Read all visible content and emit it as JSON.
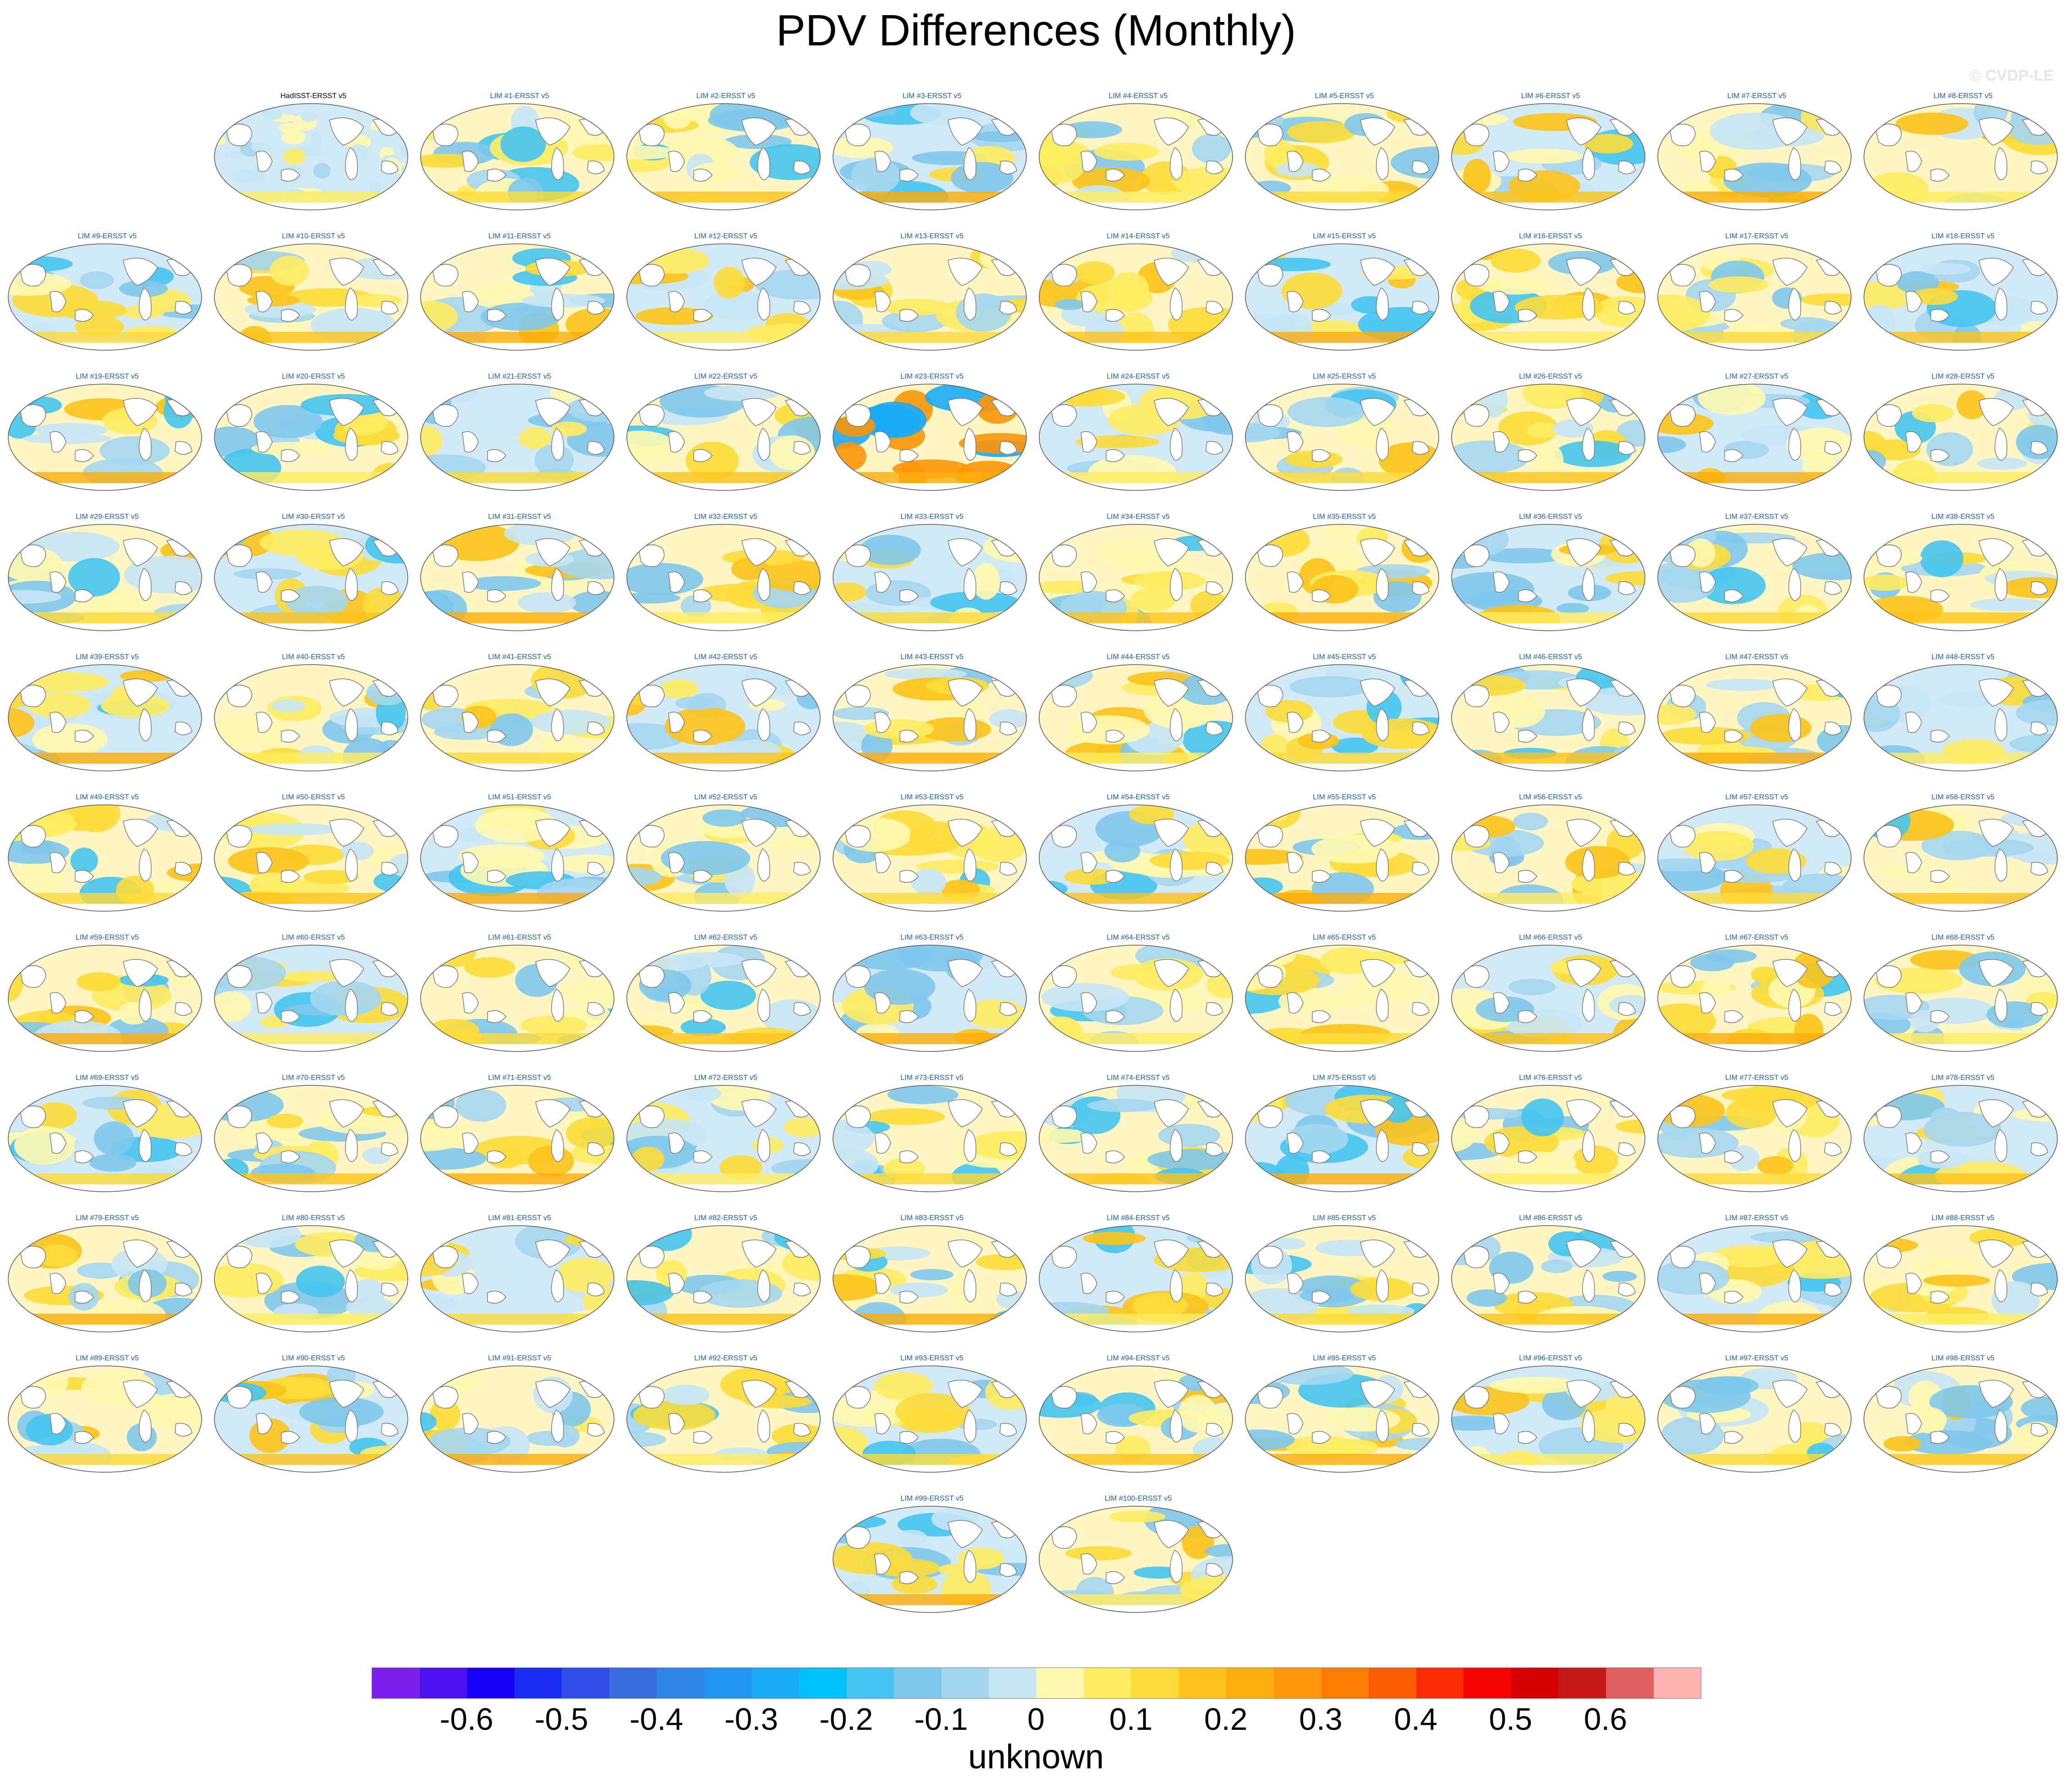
{
  "title": "PDV Differences (Monthly)",
  "watermark": "© CVDP-LE",
  "units_label": "unknown",
  "colorbar": {
    "colors": [
      "#7b20ee",
      "#4d12f0",
      "#1800f5",
      "#1a2ef2",
      "#2f4fe6",
      "#3b6fe0",
      "#2e86e9",
      "#2196f3",
      "#1aaaf5",
      "#00c0fa",
      "#45c4f0",
      "#7fc8ec",
      "#a4d6f0",
      "#c6e6f4",
      "#fff8b0",
      "#ffec62",
      "#fcdb3a",
      "#fdc31a",
      "#fcad0b",
      "#fd9608",
      "#fc7b04",
      "#fc5a03",
      "#fd2a02",
      "#f50400",
      "#d50000",
      "#c71616",
      "#e05f5f",
      "#ffb4b4"
    ],
    "tick_labels": [
      "-0.6",
      "-0.5",
      "-0.4",
      "-0.3",
      "-0.2",
      "-0.1",
      "0",
      "0.1",
      "0.2",
      "0.3",
      "0.4",
      "0.5",
      "0.6"
    ]
  },
  "panels": [
    "HadISST-ERSST v5",
    "LIM #1-ERSST v5",
    "LIM #2-ERSST v5",
    "LIM #3-ERSST v5",
    "LIM #4-ERSST v5",
    "LIM #5-ERSST v5",
    "LIM #6-ERSST v5",
    "LIM #7-ERSST v5",
    "LIM #8-ERSST v5",
    "LIM #9-ERSST v5",
    "LIM #10-ERSST v5",
    "LIM #11-ERSST v5",
    "LIM #12-ERSST v5",
    "LIM #13-ERSST v5",
    "LIM #14-ERSST v5",
    "LIM #15-ERSST v5",
    "LIM #16-ERSST v5",
    "LIM #17-ERSST v5",
    "LIM #18-ERSST v5",
    "LIM #19-ERSST v5",
    "LIM #20-ERSST v5",
    "LIM #21-ERSST v5",
    "LIM #22-ERSST v5",
    "LIM #23-ERSST v5",
    "LIM #24-ERSST v5",
    "LIM #25-ERSST v5",
    "LIM #26-ERSST v5",
    "LIM #27-ERSST v5",
    "LIM #28-ERSST v5",
    "LIM #29-ERSST v5",
    "LIM #30-ERSST v5",
    "LIM #31-ERSST v5",
    "LIM #32-ERSST v5",
    "LIM #33-ERSST v5",
    "LIM #34-ERSST v5",
    "LIM #35-ERSST v5",
    "LIM #36-ERSST v5",
    "LIM #37-ERSST v5",
    "LIM #38-ERSST v5",
    "LIM #39-ERSST v5",
    "LIM #40-ERSST v5",
    "LIM #41-ERSST v5",
    "LIM #42-ERSST v5",
    "LIM #43-ERSST v5",
    "LIM #44-ERSST v5",
    "LIM #45-ERSST v5",
    "LIM #46-ERSST v5",
    "LIM #47-ERSST v5",
    "LIM #48-ERSST v5",
    "LIM #49-ERSST v5",
    "LIM #50-ERSST v5",
    "LIM #51-ERSST v5",
    "LIM #52-ERSST v5",
    "LIM #53-ERSST v5",
    "LIM #54-ERSST v5",
    "LIM #55-ERSST v5",
    "LIM #56-ERSST v5",
    "LIM #57-ERSST v5",
    "LIM #58-ERSST v5",
    "LIM #59-ERSST v5",
    "LIM #60-ERSST v5",
    "LIM #61-ERSST v5",
    "LIM #62-ERSST v5",
    "LIM #63-ERSST v5",
    "LIM #64-ERSST v5",
    "LIM #65-ERSST v5",
    "LIM #66-ERSST v5",
    "LIM #67-ERSST v5",
    "LIM #68-ERSST v5",
    "LIM #69-ERSST v5",
    "LIM #70-ERSST v5",
    "LIM #71-ERSST v5",
    "LIM #72-ERSST v5",
    "LIM #73-ERSST v5",
    "LIM #74-ERSST v5",
    "LIM #75-ERSST v5",
    "LIM #76-ERSST v5",
    "LIM #77-ERSST v5",
    "LIM #78-ERSST v5",
    "LIM #79-ERSST v5",
    "LIM #80-ERSST v5",
    "LIM #81-ERSST v5",
    "LIM #82-ERSST v5",
    "LIM #83-ERSST v5",
    "LIM #84-ERSST v5",
    "LIM #85-ERSST v5",
    "LIM #86-ERSST v5",
    "LIM #87-ERSST v5",
    "LIM #88-ERSST v5",
    "LIM #89-ERSST v5",
    "LIM #90-ERSST v5",
    "LIM #91-ERSST v5",
    "LIM #92-ERSST v5",
    "LIM #93-ERSST v5",
    "LIM #94-ERSST v5",
    "LIM #95-ERSST v5",
    "LIM #96-ERSST v5",
    "LIM #97-ERSST v5",
    "LIM #98-ERSST v5",
    "LIM #99-ERSST v5",
    "LIM #100-ERSST v5"
  ]
}
